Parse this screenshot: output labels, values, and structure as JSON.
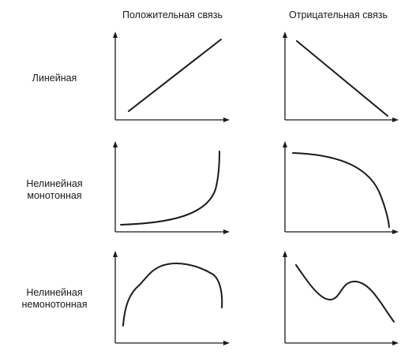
{
  "columns": {
    "positive": "Положительная связь",
    "negative": "Отрицательная связь"
  },
  "rows": {
    "linear": [
      "Линейная"
    ],
    "nonlinear_monotonic": [
      "Нелинейная",
      "монотонная"
    ],
    "nonlinear_nonmonotonic": [
      "Нелинейная",
      "немонотонная"
    ]
  }
}
